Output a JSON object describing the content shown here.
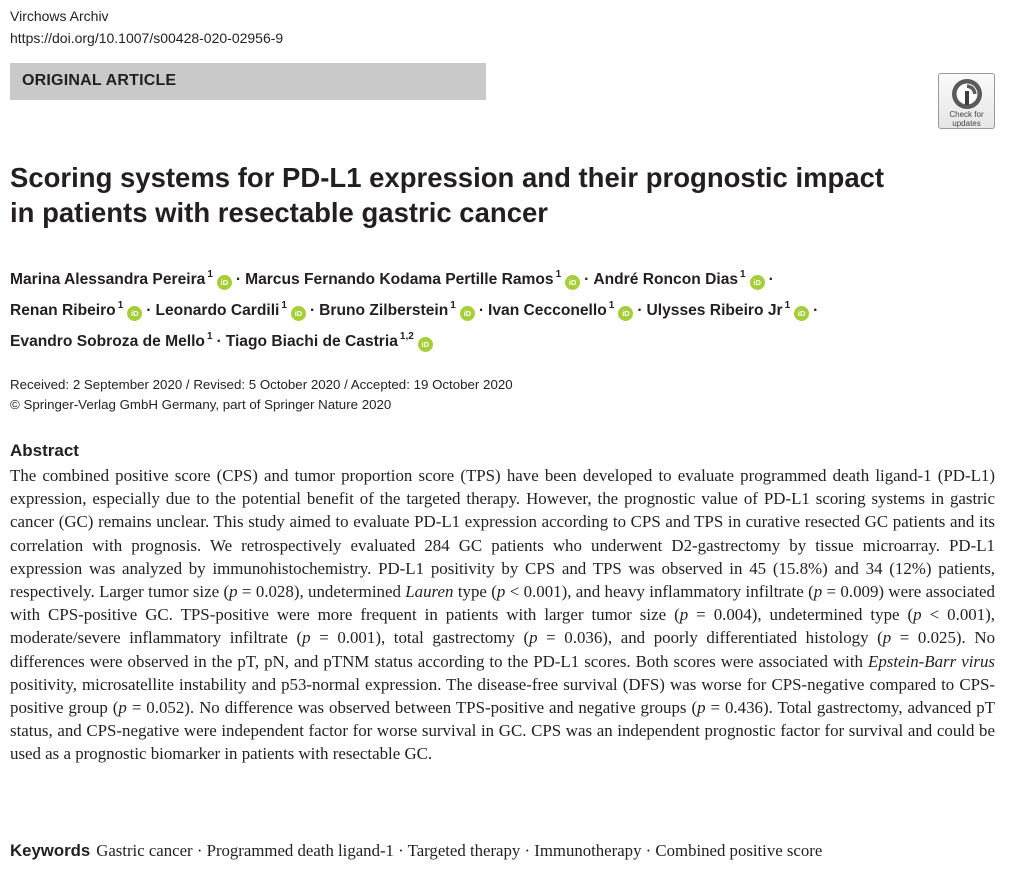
{
  "header": {
    "journal": "Virchows Archiv",
    "doi": "https://doi.org/10.1007/s00428-020-02956-9"
  },
  "article_type": "ORIGINAL ARTICLE",
  "check_updates": {
    "line1": "Check for",
    "line2": "updates"
  },
  "title": {
    "line1": "Scoring systems for PD-L1 expression and their prognostic impact",
    "line2": "in patients with resectable gastric cancer"
  },
  "orcid_label": "iD",
  "separator": "·",
  "authors": [
    {
      "name": "Marina Alessandra Pereira",
      "aff": "1"
    },
    {
      "name": "Marcus Fernando Kodama Pertille Ramos",
      "aff": "1"
    },
    {
      "name": "André Roncon Dias",
      "aff": "1"
    },
    {
      "name": "Renan Ribeiro",
      "aff": "1"
    },
    {
      "name": "Leonardo Cardili",
      "aff": "1"
    },
    {
      "name": "Bruno Zilberstein",
      "aff": "1"
    },
    {
      "name": "Ivan Cecconello",
      "aff": "1"
    },
    {
      "name": "Ulysses Ribeiro Jr",
      "aff": "1"
    },
    {
      "name": "Evandro Sobroza de Mello",
      "aff": "1"
    },
    {
      "name": "Tiago Biachi de Castria",
      "aff": "1,2"
    }
  ],
  "dates": "Received: 2 September 2020 / Revised: 5 October 2020 / Accepted: 19 October 2020",
  "copyright": "© Springer-Verlag GmbH Germany, part of Springer Nature 2020",
  "abstract": {
    "heading": "Abstract",
    "p1": "The combined positive score (CPS) and tumor proportion score (TPS) have been developed to evaluate programmed death ligand-1 (PD-L1) expression, especially due to the potential benefit of the targeted therapy. However, the prognostic value of PD-L1 scoring systems in gastric cancer (GC) remains unclear. This study aimed to evaluate PD-L1 expression according to CPS and TPS in curative resected GC patients and its correlation with prognosis. We retrospectively evaluated 284 GC patients who underwent D2-gastrectomy by tissue microarray. PD-L1 expression was analyzed by immunohistochemistry. PD-L1 positivity by CPS and TPS was observed in 45 (15.8%) and 34 (12%) patients, respectively. Larger tumor size (",
    "p_sym": "p",
    "v1": " = 0.028), undetermined ",
    "lauren": "Lauren",
    "v2": " type (",
    "v3": " < 0.001), and heavy inflammatory infiltrate (",
    "v4": " = 0.009) were associated with CPS-positive GC. TPS-positive were more frequent in patients with larger tumor size (",
    "v5": " = 0.004), undetermined type (",
    "v6": " < 0.001), moderate/severe inflammatory infiltrate (",
    "v7": " = 0.001), total gastrectomy (",
    "v8": " = 0.036), and poorly differentiated histology (",
    "v9": " = 0.025). No differences were observed in the pT, pN, and pTNM status according to the PD-L1 scores. Both scores were associated with ",
    "ebv": "Epstein-Barr virus",
    "v10": " positivity, microsatellite instability and p53-normal expression. The disease-free survival (DFS) was worse for CPS-negative compared to CPS-positive group (",
    "v11": " = 0.052). No difference was observed between TPS-positive and negative groups (",
    "v12": " = 0.436). Total gastrectomy, advanced pT status, and CPS-negative were independent factor for worse survival in GC. CPS was an independent prognostic factor for survival and could be used as a prognostic biomarker in patients with resectable GC."
  },
  "keywords": {
    "label": "Keywords",
    "items": "Gastric cancer · Programmed death ligand-1 · Targeted therapy · Immunotherapy · Combined positive score"
  }
}
